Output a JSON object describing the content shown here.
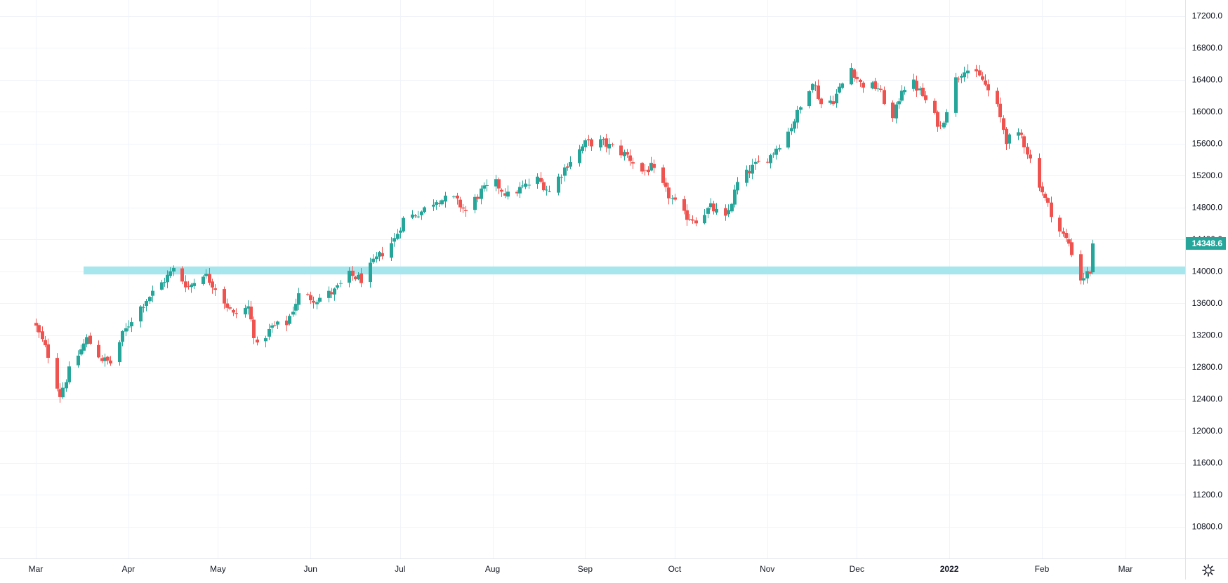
{
  "colors": {
    "up": "#26a69a",
    "down": "#ef5350",
    "zone": "#a8e6ee",
    "grid": "#f0f3fa",
    "axis_text": "#131722",
    "price_label_bg": "#26a69a",
    "price_label_text": "#ffffff",
    "border": "#e0e3eb"
  },
  "price_axis": {
    "min": 10400,
    "max": 17400,
    "ticks": [
      "17200.0",
      "16800.0",
      "16400.0",
      "16000.0",
      "15600.0",
      "15200.0",
      "14800.0",
      "14400.0",
      "14000.0",
      "13600.0",
      "13200.0",
      "12800.0",
      "12400.0",
      "12000.0",
      "11600.0",
      "11200.0",
      "10800.0"
    ],
    "current_price_label": "14348.6"
  },
  "time_axis": {
    "labels": [
      {
        "text": "Mar",
        "date": "2021-03-01",
        "bold": false
      },
      {
        "text": "Apr",
        "date": "2021-04-01",
        "bold": false
      },
      {
        "text": "May",
        "date": "2021-05-01",
        "bold": false
      },
      {
        "text": "Jun",
        "date": "2021-06-01",
        "bold": false
      },
      {
        "text": "Jul",
        "date": "2021-07-01",
        "bold": false
      },
      {
        "text": "Aug",
        "date": "2021-08-01",
        "bold": false
      },
      {
        "text": "Sep",
        "date": "2021-09-01",
        "bold": false
      },
      {
        "text": "Oct",
        "date": "2021-10-01",
        "bold": false
      },
      {
        "text": "Nov",
        "date": "2021-11-01",
        "bold": false
      },
      {
        "text": "Dec",
        "date": "2021-12-01",
        "bold": false
      },
      {
        "text": "2022",
        "date": "2022-01-01",
        "bold": true
      },
      {
        "text": "Feb",
        "date": "2022-02-01",
        "bold": false
      },
      {
        "text": "Mar",
        "date": "2022-03-01",
        "bold": false
      }
    ]
  },
  "settings": {
    "icon": "gear-icon"
  },
  "chart_data": {
    "type": "candlestick",
    "grid": true,
    "x_range": [
      "2021-03-01",
      "2022-03-21"
    ],
    "y_range": [
      10400,
      17400
    ],
    "support_zone": {
      "start_date": "2021-03-17",
      "end_date": "2022-03-21",
      "low": 13960,
      "high": 14060
    },
    "last_price": 14348.6,
    "anchors": [
      [
        "2021-03-01",
        13300
      ],
      [
        "2021-03-05",
        12950
      ],
      [
        "2021-03-09",
        12450
      ],
      [
        "2021-03-12",
        12750
      ],
      [
        "2021-03-18",
        13150
      ],
      [
        "2021-03-23",
        12900
      ],
      [
        "2021-03-26",
        12850
      ],
      [
        "2021-03-30",
        13200
      ],
      [
        "2021-04-02",
        13400
      ],
      [
        "2021-04-07",
        13650
      ],
      [
        "2021-04-12",
        13850
      ],
      [
        "2021-04-16",
        14020
      ],
      [
        "2021-04-21",
        13800
      ],
      [
        "2021-04-26",
        13980
      ],
      [
        "2021-04-30",
        13800
      ],
      [
        "2021-05-06",
        13450
      ],
      [
        "2021-05-11",
        13550
      ],
      [
        "2021-05-14",
        13050
      ],
      [
        "2021-05-19",
        13300
      ],
      [
        "2021-05-24",
        13350
      ],
      [
        "2021-05-28",
        13700
      ],
      [
        "2021-06-03",
        13650
      ],
      [
        "2021-06-09",
        13750
      ],
      [
        "2021-06-14",
        13950
      ],
      [
        "2021-06-18",
        13900
      ],
      [
        "2021-06-23",
        14150
      ],
      [
        "2021-06-29",
        14400
      ],
      [
        "2021-07-02",
        14650
      ],
      [
        "2021-07-08",
        14750
      ],
      [
        "2021-07-13",
        14900
      ],
      [
        "2021-07-19",
        14900
      ],
      [
        "2021-07-23",
        14750
      ],
      [
        "2021-07-28",
        15000
      ],
      [
        "2021-08-02",
        15100
      ],
      [
        "2021-08-06",
        14950
      ],
      [
        "2021-08-11",
        15050
      ],
      [
        "2021-08-16",
        15150
      ],
      [
        "2021-08-20",
        15000
      ],
      [
        "2021-08-26",
        15350
      ],
      [
        "2021-09-01",
        15600
      ],
      [
        "2021-09-06",
        15620
      ],
      [
        "2021-09-10",
        15550
      ],
      [
        "2021-09-15",
        15450
      ],
      [
        "2021-09-20",
        15250
      ],
      [
        "2021-09-23",
        15300
      ],
      [
        "2021-09-28",
        15000
      ],
      [
        "2021-10-04",
        14700
      ],
      [
        "2021-10-08",
        14650
      ],
      [
        "2021-10-13",
        14800
      ],
      [
        "2021-10-18",
        14650
      ],
      [
        "2021-10-22",
        15100
      ],
      [
        "2021-10-27",
        15300
      ],
      [
        "2021-11-02",
        15450
      ],
      [
        "2021-11-08",
        15750
      ],
      [
        "2021-11-12",
        16050
      ],
      [
        "2021-11-16",
        16400
      ],
      [
        "2021-11-19",
        16100
      ],
      [
        "2021-11-23",
        16150
      ],
      [
        "2021-11-29",
        16550
      ],
      [
        "2021-12-02",
        16350
      ],
      [
        "2021-12-08",
        16300
      ],
      [
        "2021-12-13",
        15900
      ],
      [
        "2021-12-16",
        16300
      ],
      [
        "2021-12-20",
        16350
      ],
      [
        "2021-12-23",
        16200
      ],
      [
        "2021-12-29",
        15800
      ],
      [
        "2022-01-03",
        16400
      ],
      [
        "2022-01-06",
        16550
      ],
      [
        "2022-01-12",
        16400
      ],
      [
        "2022-01-17",
        16050
      ],
      [
        "2022-01-20",
        15650
      ],
      [
        "2022-01-25",
        15700
      ],
      [
        "2022-01-28",
        15400
      ],
      [
        "2022-02-02",
        14900
      ],
      [
        "2022-02-07",
        14500
      ],
      [
        "2022-02-10",
        14350
      ],
      [
        "2022-02-14",
        13900
      ],
      [
        "2022-02-17",
        14000
      ],
      [
        "2022-02-18",
        14348.6
      ]
    ]
  }
}
